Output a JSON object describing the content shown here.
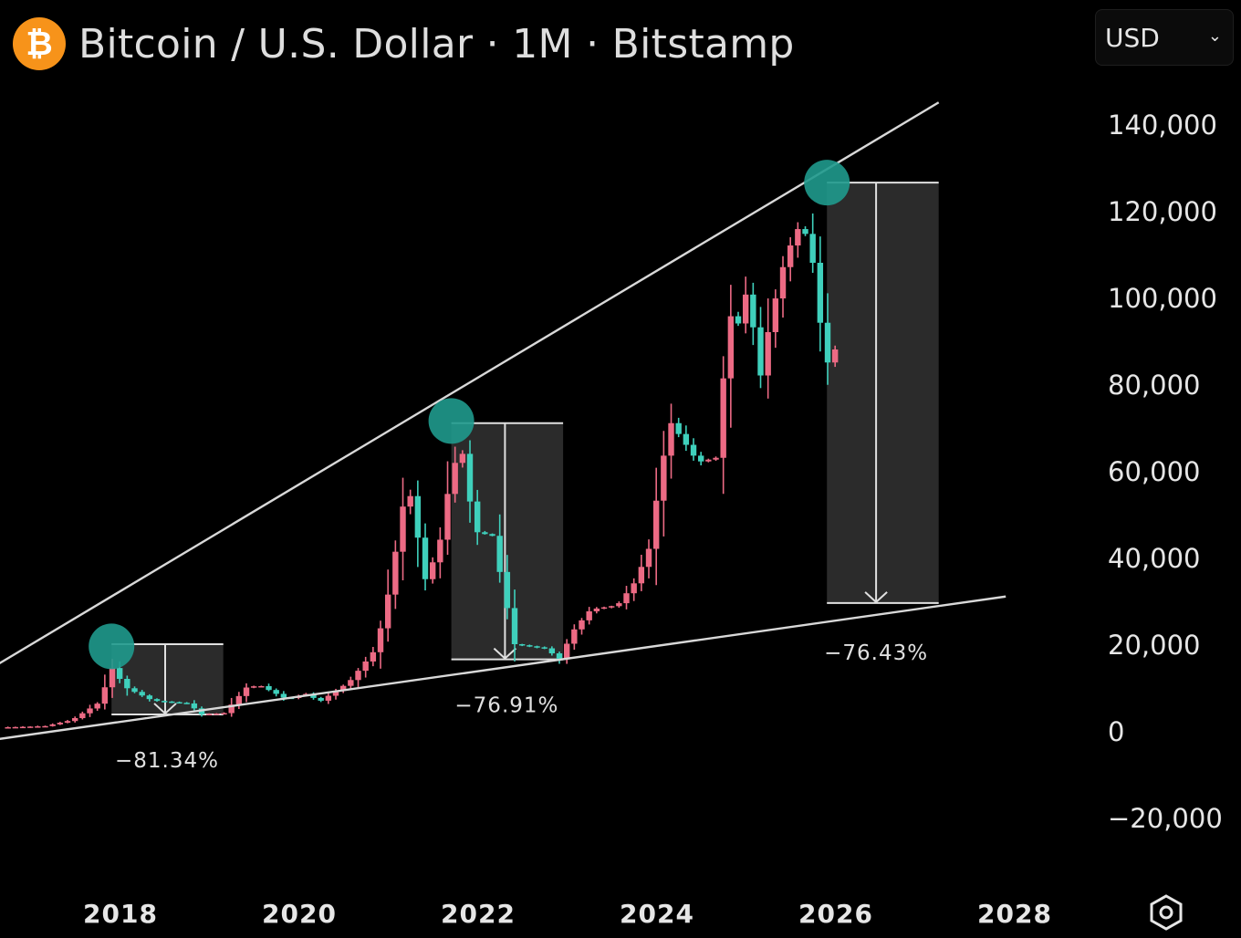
{
  "header": {
    "logo_glyph": "₿",
    "title": "Bitcoin / U.S. Dollar · 1M · Bitstamp",
    "currency": "USD"
  },
  "icons": {
    "logo": "bitcoin-logo-icon",
    "dropdown": "chevron-down-icon",
    "settings": "settings-hexagon-icon"
  },
  "colors": {
    "background": "#000000",
    "up_candle": "#ec6a84",
    "down_candle": "#3fd0bc",
    "peak_marker": "#1f9a8d",
    "trendline": "#d8d8d8",
    "drawdown_box": "#2b2b2b",
    "logo": "#f7931a"
  },
  "chart_data": {
    "type": "candlestick",
    "interval": "1M",
    "exchange": "Bitstamp",
    "y_axis": {
      "side": "right",
      "range": [
        -25000,
        148000
      ],
      "ticks": [
        140000,
        120000,
        100000,
        80000,
        60000,
        40000,
        20000,
        0,
        -20000
      ],
      "tick_labels": [
        "140,000",
        "120,000",
        "100,000",
        "80,000",
        "60,000",
        "40,000",
        "20,000",
        "0",
        "−20,000"
      ]
    },
    "x_axis": {
      "range": [
        2016.7,
        2029.4
      ],
      "ticks": [
        2018,
        2020,
        2022,
        2024,
        2026,
        2028
      ],
      "tick_labels": [
        "2018",
        "2020",
        "2022",
        "2024",
        "2026",
        "2028"
      ]
    },
    "grid": false,
    "anchors": [
      {
        "t": 2016.7,
        "p": 800
      },
      {
        "t": 2016.9,
        "p": 900
      },
      {
        "t": 2017.2,
        "p": 1100
      },
      {
        "t": 2017.5,
        "p": 2500
      },
      {
        "t": 2017.8,
        "p": 6500
      },
      {
        "t": 2017.95,
        "p": 14500
      },
      {
        "t": 2018.1,
        "p": 10000
      },
      {
        "t": 2018.4,
        "p": 7000
      },
      {
        "t": 2018.8,
        "p": 6300
      },
      {
        "t": 2018.95,
        "p": 3800
      },
      {
        "t": 2019.2,
        "p": 4100
      },
      {
        "t": 2019.45,
        "p": 10000
      },
      {
        "t": 2019.6,
        "p": 10500
      },
      {
        "t": 2019.9,
        "p": 7300
      },
      {
        "t": 2020.15,
        "p": 8700
      },
      {
        "t": 2020.25,
        "p": 6500
      },
      {
        "t": 2020.6,
        "p": 11300
      },
      {
        "t": 2020.9,
        "p": 19000
      },
      {
        "t": 2021.05,
        "p": 33000
      },
      {
        "t": 2021.25,
        "p": 58000
      },
      {
        "t": 2021.45,
        "p": 35000
      },
      {
        "t": 2021.6,
        "p": 42000
      },
      {
        "t": 2021.75,
        "p": 61000
      },
      {
        "t": 2021.87,
        "p": 64000
      },
      {
        "t": 2022.0,
        "p": 46000
      },
      {
        "t": 2022.2,
        "p": 45000
      },
      {
        "t": 2022.45,
        "p": 20000
      },
      {
        "t": 2022.8,
        "p": 19000
      },
      {
        "t": 2022.95,
        "p": 16500
      },
      {
        "t": 2023.1,
        "p": 23000
      },
      {
        "t": 2023.3,
        "p": 28000
      },
      {
        "t": 2023.6,
        "p": 29000
      },
      {
        "t": 2023.8,
        "p": 34500
      },
      {
        "t": 2023.95,
        "p": 42000
      },
      {
        "t": 2024.1,
        "p": 62000
      },
      {
        "t": 2024.2,
        "p": 71000
      },
      {
        "t": 2024.5,
        "p": 62000
      },
      {
        "t": 2024.7,
        "p": 63000
      },
      {
        "t": 2024.85,
        "p": 96000
      },
      {
        "t": 2024.95,
        "p": 94000
      },
      {
        "t": 2025.05,
        "p": 102000
      },
      {
        "t": 2025.2,
        "p": 82000
      },
      {
        "t": 2025.3,
        "p": 94000
      },
      {
        "t": 2025.45,
        "p": 107000
      },
      {
        "t": 2025.6,
        "p": 116000
      },
      {
        "t": 2025.75,
        "p": 114000
      },
      {
        "t": 2025.85,
        "p": 96000
      },
      {
        "t": 2025.95,
        "p": 85000
      },
      {
        "t": 2026.0,
        "p": 88000
      }
    ],
    "upper_trendline": [
      [
        2016.6,
        15000
      ],
      [
        2027.15,
        145000
      ]
    ],
    "lower_trendline": [
      [
        2016.6,
        -2000
      ],
      [
        2027.9,
        31000
      ]
    ],
    "peaks": [
      {
        "t": 2017.9,
        "p": 19500
      },
      {
        "t": 2021.7,
        "p": 71500
      },
      {
        "t": 2025.9,
        "p": 126500
      }
    ],
    "drawdowns": [
      {
        "label": "−81.34%",
        "t0": 2017.9,
        "t1": 2019.15,
        "arrow_t": 2018.5,
        "high": 20000,
        "low": 3800
      },
      {
        "label": "−76.91%",
        "t0": 2021.7,
        "t1": 2022.95,
        "arrow_t": 2022.3,
        "high": 71000,
        "low": 16500
      },
      {
        "label": "−76.43%",
        "t0": 2025.9,
        "t1": 2027.15,
        "arrow_t": 2026.45,
        "high": 126500,
        "low": 29500
      }
    ]
  }
}
